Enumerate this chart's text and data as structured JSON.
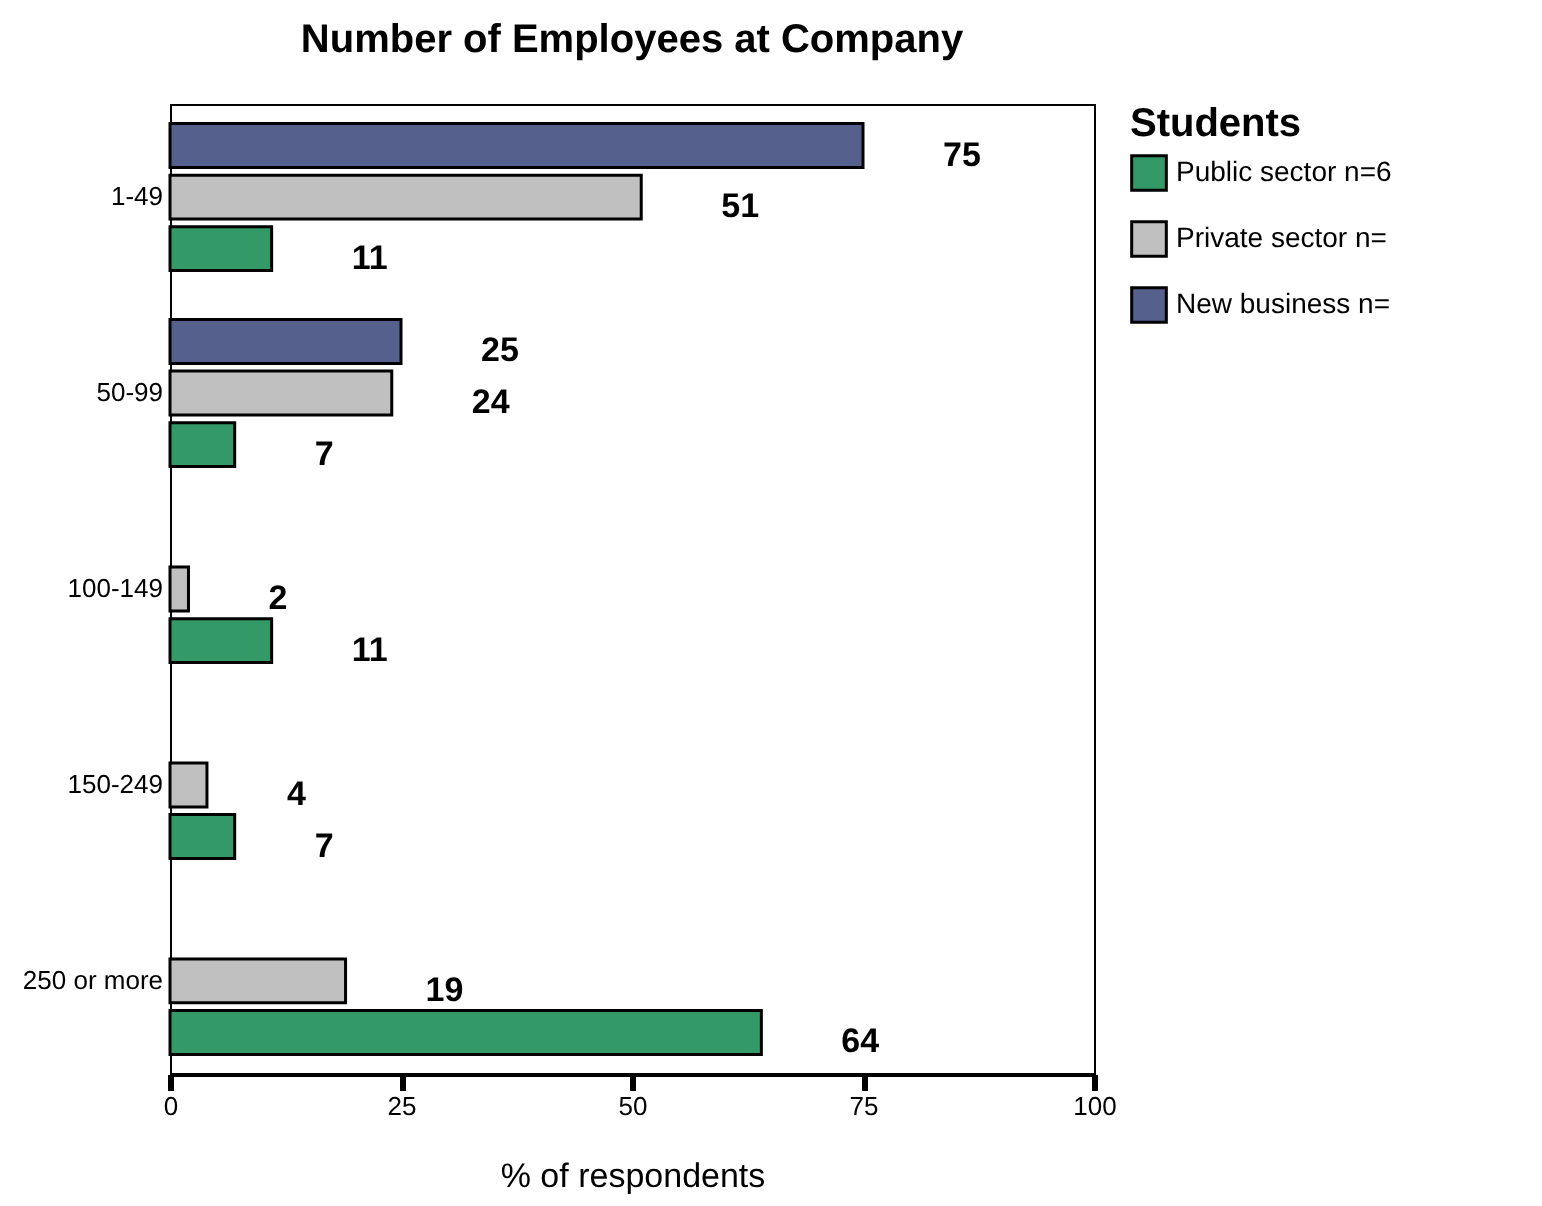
{
  "chart_data": {
    "type": "bar",
    "orientation": "horizontal",
    "title": "Number of Employees at Company",
    "xlabel": "% of respondents",
    "legend_title": "Students",
    "categories": [
      "1-49",
      "50-99",
      "100-149",
      "150-249",
      "250 or more"
    ],
    "series": [
      {
        "name": "Public sector n=6",
        "color": "#339966",
        "values": [
          11,
          7,
          11,
          7,
          64
        ]
      },
      {
        "name": "Private sector n=",
        "color": "#c0c0c0",
        "values": [
          51,
          24,
          2,
          4,
          19
        ]
      },
      {
        "name": "New business n=",
        "color": "#55608c",
        "values": [
          75,
          25,
          null,
          null,
          null
        ]
      }
    ],
    "xlim": [
      0,
      100
    ],
    "xticks": [
      0,
      25,
      50,
      75,
      100
    ],
    "grid": false,
    "legend": "top right",
    "data_labels": true
  }
}
